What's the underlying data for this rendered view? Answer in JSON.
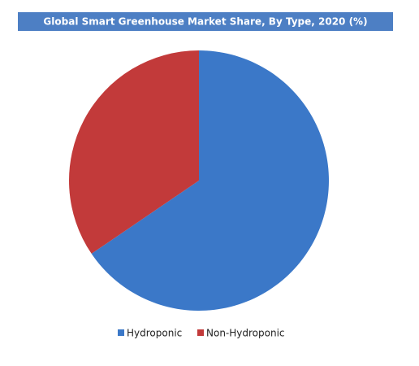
{
  "chart_data": {
    "type": "pie",
    "title": "Global Smart Greenhouse Market Share, By Type, 2020 (%)",
    "categories": [
      "Hydroponic",
      "Non-Hydroponic"
    ],
    "values": [
      65.5,
      34.5
    ],
    "colors": [
      "#3b78c8",
      "#c23a3a"
    ]
  }
}
